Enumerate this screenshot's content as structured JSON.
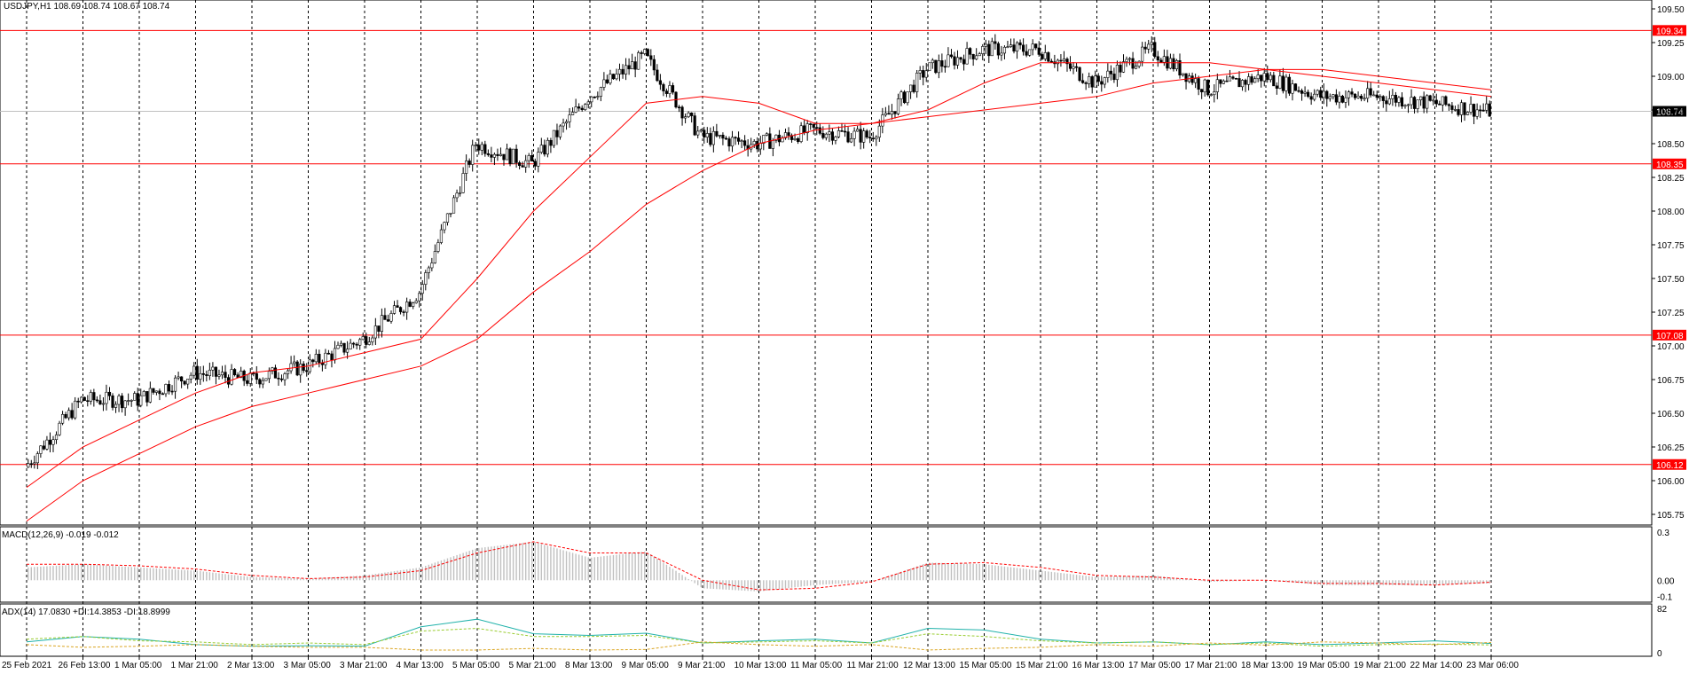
{
  "main_panel": {
    "title": "USDJPY,H1  108.69 108.74 108.67 108.74",
    "current_price_label": "108.74",
    "y_ticks": [
      "109.50",
      "109.25",
      "109.00",
      "108.75",
      "108.50",
      "108.25",
      "108.00",
      "107.75",
      "107.50",
      "107.25",
      "107.00",
      "106.75",
      "106.50",
      "106.25",
      "106.00",
      "105.75"
    ]
  },
  "macd_panel": {
    "title": "MACD(12,26,9) -0.019 -0.012",
    "y_ticks": [
      "0.3",
      "0.00",
      "-0.1"
    ]
  },
  "adx_panel": {
    "title": "ADX(14) 17.0830 +DI:14.3853 -DI:18.8999",
    "y_ticks": [
      "82",
      "0"
    ]
  },
  "x_labels": [
    "25 Feb 2021",
    "26 Feb 13:00",
    "1 Mar 05:00",
    "1 Mar 21:00",
    "2 Mar 13:00",
    "3 Mar 05:00",
    "3 Mar 21:00",
    "4 Mar 13:00",
    "5 Mar 05:00",
    "5 Mar 21:00",
    "8 Mar 13:00",
    "9 Mar 05:00",
    "9 Mar 21:00",
    "10 Mar 13:00",
    "11 Mar 05:00",
    "11 Mar 21:00",
    "12 Mar 13:00",
    "15 Mar 05:00",
    "15 Mar 21:00",
    "16 Mar 13:00",
    "17 Mar 05:00",
    "17 Mar 21:00",
    "18 Mar 13:00",
    "19 Mar 05:00",
    "19 Mar 21:00",
    "22 Mar 14:00",
    "23 Mar 06:00"
  ],
  "chart_data": {
    "type": "line",
    "symbol": "USDJPY",
    "timeframe": "H1",
    "ylim": [
      105.75,
      109.5
    ],
    "horizontal_levels": [
      {
        "value": 109.34,
        "label": "109.34",
        "color": "#ff0000"
      },
      {
        "value": 108.35,
        "label": "108.35",
        "color": "#ff0000"
      },
      {
        "value": 107.08,
        "label": "107.08",
        "color": "#ff0000"
      },
      {
        "value": 106.12,
        "label": "106.12",
        "color": "#ff0000"
      }
    ],
    "current_price": 108.74,
    "x": [
      "25 Feb 2021",
      "26 Feb 13:00",
      "1 Mar 05:00",
      "1 Mar 21:00",
      "2 Mar 13:00",
      "3 Mar 05:00",
      "3 Mar 21:00",
      "4 Mar 13:00",
      "5 Mar 05:00",
      "5 Mar 21:00",
      "8 Mar 13:00",
      "9 Mar 05:00",
      "9 Mar 21:00",
      "10 Mar 13:00",
      "11 Mar 05:00",
      "11 Mar 21:00",
      "12 Mar 13:00",
      "15 Mar 05:00",
      "15 Mar 21:00",
      "16 Mar 13:00",
      "17 Mar 05:00",
      "17 Mar 21:00",
      "18 Mar 13:00",
      "19 Mar 05:00",
      "19 Mar 21:00",
      "22 Mar 14:00",
      "23 Mar 06:00"
    ],
    "series": [
      {
        "values": [
          106.1,
          106.6,
          106.6,
          106.8,
          106.75,
          106.85,
          107.05,
          107.4,
          108.5,
          108.35,
          108.85,
          109.15,
          108.55,
          108.5,
          108.6,
          108.55,
          109.05,
          109.2,
          109.2,
          108.95,
          109.2,
          108.9,
          109.0,
          108.85,
          108.85,
          108.8,
          108.74
        ]
      },
      {
        "values": [
          105.95,
          106.25,
          106.45,
          106.65,
          106.8,
          106.85,
          106.95,
          107.05,
          107.5,
          108.0,
          108.4,
          108.8,
          108.85,
          108.8,
          108.65,
          108.65,
          108.75,
          108.95,
          109.1,
          109.1,
          109.1,
          109.1,
          109.05,
          109.0,
          108.95,
          108.9,
          108.85
        ]
      },
      {
        "values": [
          105.7,
          106.0,
          106.2,
          106.4,
          106.55,
          106.65,
          106.75,
          106.85,
          107.05,
          107.4,
          107.7,
          108.05,
          108.3,
          108.5,
          108.6,
          108.65,
          108.7,
          108.75,
          108.8,
          108.85,
          108.95,
          109.0,
          109.05,
          109.05,
          109.0,
          108.95,
          108.9
        ]
      }
    ],
    "macd": {
      "histogram": [
        0.08,
        0.1,
        0.08,
        0.06,
        0.02,
        0.01,
        0.03,
        0.08,
        0.2,
        0.24,
        0.14,
        0.18,
        -0.05,
        -0.07,
        -0.03,
        -0.01,
        0.11,
        0.1,
        0.06,
        0.02,
        0.03,
        -0.01,
        0.0,
        -0.03,
        -0.03,
        -0.03,
        -0.019
      ],
      "signal": [
        0.1,
        0.1,
        0.09,
        0.07,
        0.03,
        0.01,
        0.02,
        0.06,
        0.17,
        0.24,
        0.17,
        0.17,
        0.0,
        -0.06,
        -0.05,
        -0.01,
        0.1,
        0.11,
        0.08,
        0.03,
        0.02,
        0.0,
        0.0,
        -0.02,
        -0.02,
        -0.03,
        -0.012
      ]
    },
    "adx": {
      "adx": [
        20,
        30,
        25,
        15,
        12,
        13,
        12,
        48,
        62,
        35,
        32,
        36,
        18,
        22,
        25,
        18,
        45,
        42,
        25,
        18,
        20,
        15,
        20,
        15,
        18,
        22,
        17.08
      ],
      "plus_di": [
        25,
        30,
        22,
        20,
        15,
        18,
        15,
        40,
        45,
        30,
        30,
        32,
        18,
        20,
        22,
        18,
        35,
        30,
        22,
        18,
        20,
        15,
        18,
        12,
        15,
        16,
        14.39
      ],
      "minus_di": [
        15,
        10,
        12,
        15,
        12,
        10,
        10,
        5,
        5,
        8,
        5,
        6,
        20,
        15,
        12,
        15,
        5,
        8,
        10,
        15,
        12,
        18,
        14,
        20,
        18,
        15,
        18.9
      ]
    },
    "colors": {
      "ma": "#ff0000",
      "level": "#ff0000",
      "adx": "#20b2aa",
      "plus_di": "#9acd32",
      "minus_di": "#daa520",
      "histogram": "#c0c0c0"
    }
  }
}
